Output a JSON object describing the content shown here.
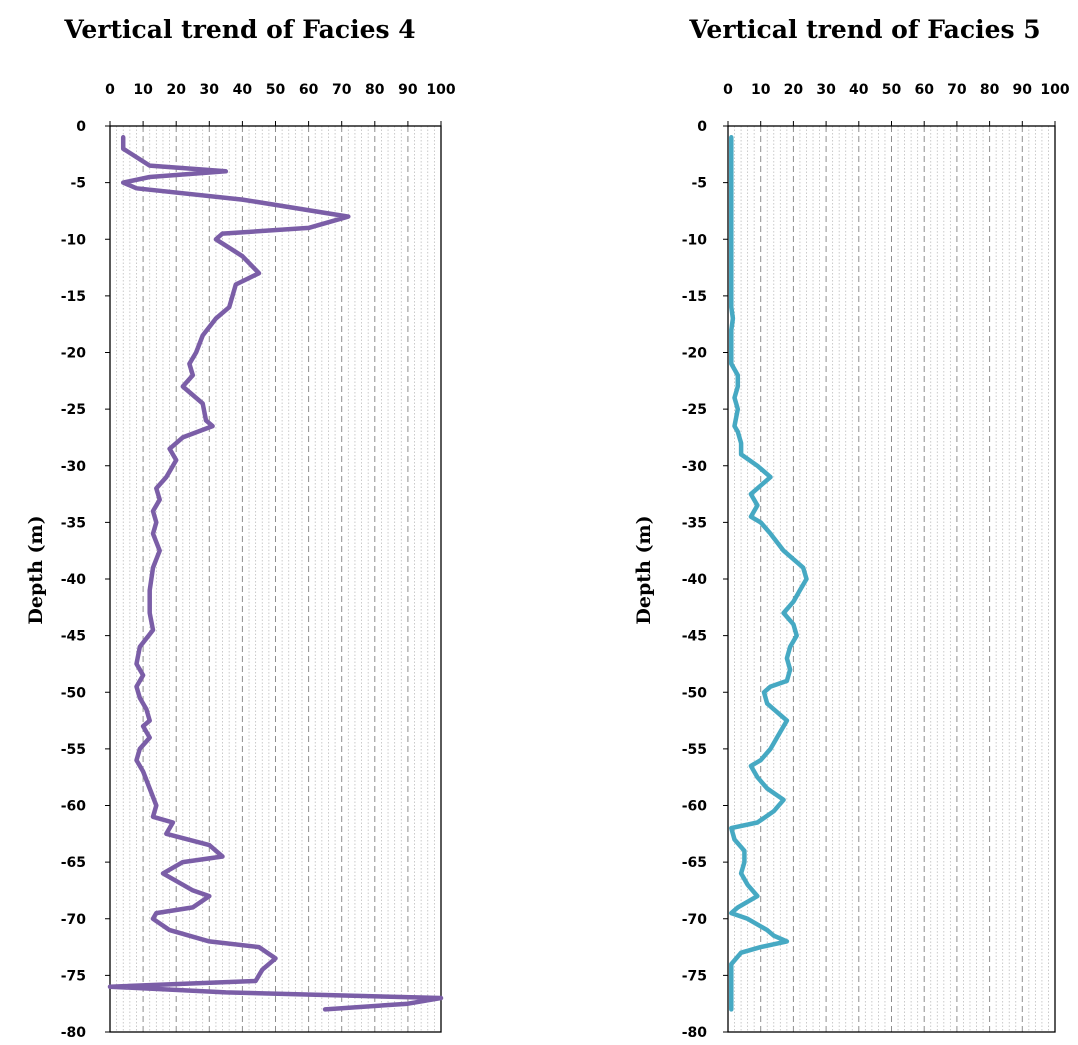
{
  "chart_data": [
    {
      "type": "line",
      "title": "Vertical trend of Facies 4",
      "xlabel": "",
      "ylabel": "Depth (m)",
      "xlim": [
        0,
        100
      ],
      "ylim": [
        -80,
        0
      ],
      "x_ticks": [
        "0",
        "10",
        "20",
        "30",
        "40",
        "50",
        "60",
        "70",
        "80",
        "90",
        "100"
      ],
      "y_ticks": [
        "0",
        "-5",
        "-10",
        "-15",
        "-20",
        "-25",
        "-30",
        "-35",
        "-40",
        "-45",
        "-50",
        "-55",
        "-60",
        "-65",
        "-70",
        "-75",
        "-80"
      ],
      "x_axis_position": "top",
      "grid": true,
      "color": "#7b5ea7",
      "series": [
        {
          "values": [
            {
              "x": 4,
              "y": -1
            },
            {
              "x": 4,
              "y": -2
            },
            {
              "x": 12,
              "y": -3.5
            },
            {
              "x": 35,
              "y": -4
            },
            {
              "x": 12,
              "y": -4.5
            },
            {
              "x": 4,
              "y": -5
            },
            {
              "x": 8,
              "y": -5.5
            },
            {
              "x": 40,
              "y": -6.5
            },
            {
              "x": 72,
              "y": -8
            },
            {
              "x": 60,
              "y": -9
            },
            {
              "x": 34,
              "y": -9.5
            },
            {
              "x": 32,
              "y": -10
            },
            {
              "x": 40,
              "y": -11.5
            },
            {
              "x": 45,
              "y": -13
            },
            {
              "x": 38,
              "y": -14
            },
            {
              "x": 36,
              "y": -16
            },
            {
              "x": 32,
              "y": -17
            },
            {
              "x": 28,
              "y": -18.5
            },
            {
              "x": 26,
              "y": -20
            },
            {
              "x": 24,
              "y": -21
            },
            {
              "x": 25,
              "y": -22
            },
            {
              "x": 22,
              "y": -23
            },
            {
              "x": 28,
              "y": -24.5
            },
            {
              "x": 29,
              "y": -26
            },
            {
              "x": 31,
              "y": -26.5
            },
            {
              "x": 22,
              "y": -27.5
            },
            {
              "x": 18,
              "y": -28.5
            },
            {
              "x": 20,
              "y": -29.5
            },
            {
              "x": 17,
              "y": -31
            },
            {
              "x": 14,
              "y": -32
            },
            {
              "x": 15,
              "y": -33
            },
            {
              "x": 13,
              "y": -34
            },
            {
              "x": 14,
              "y": -35
            },
            {
              "x": 13,
              "y": -36
            },
            {
              "x": 15,
              "y": -37.5
            },
            {
              "x": 13,
              "y": -39
            },
            {
              "x": 12,
              "y": -41
            },
            {
              "x": 12,
              "y": -43
            },
            {
              "x": 13,
              "y": -44.5
            },
            {
              "x": 9,
              "y": -46
            },
            {
              "x": 8,
              "y": -47.5
            },
            {
              "x": 10,
              "y": -48.5
            },
            {
              "x": 8,
              "y": -49.5
            },
            {
              "x": 9,
              "y": -50.5
            },
            {
              "x": 11,
              "y": -51.5
            },
            {
              "x": 12,
              "y": -52.5
            },
            {
              "x": 10,
              "y": -53
            },
            {
              "x": 12,
              "y": -54
            },
            {
              "x": 9,
              "y": -55
            },
            {
              "x": 8,
              "y": -56
            },
            {
              "x": 10,
              "y": -57
            },
            {
              "x": 12,
              "y": -58.5
            },
            {
              "x": 14,
              "y": -60
            },
            {
              "x": 13,
              "y": -61
            },
            {
              "x": 19,
              "y": -61.5
            },
            {
              "x": 17,
              "y": -62.5
            },
            {
              "x": 30,
              "y": -63.5
            },
            {
              "x": 34,
              "y": -64.5
            },
            {
              "x": 22,
              "y": -65
            },
            {
              "x": 16,
              "y": -66
            },
            {
              "x": 25,
              "y": -67.5
            },
            {
              "x": 30,
              "y": -68
            },
            {
              "x": 25,
              "y": -69
            },
            {
              "x": 14,
              "y": -69.5
            },
            {
              "x": 13,
              "y": -70
            },
            {
              "x": 18,
              "y": -71
            },
            {
              "x": 30,
              "y": -72
            },
            {
              "x": 45,
              "y": -72.5
            },
            {
              "x": 50,
              "y": -73.5
            },
            {
              "x": 46,
              "y": -74.5
            },
            {
              "x": 44,
              "y": -75.5
            },
            {
              "x": 0,
              "y": -76
            },
            {
              "x": 35,
              "y": -76.5
            },
            {
              "x": 100,
              "y": -77
            },
            {
              "x": 90,
              "y": -77.5
            },
            {
              "x": 65,
              "y": -78
            }
          ]
        }
      ]
    },
    {
      "type": "line",
      "title": "Vertical trend of Facies 5",
      "xlabel": "",
      "ylabel": "Depth (m)",
      "xlim": [
        0,
        100
      ],
      "ylim": [
        -80,
        0
      ],
      "x_ticks": [
        "0",
        "10",
        "20",
        "30",
        "40",
        "50",
        "60",
        "70",
        "80",
        "90",
        "100"
      ],
      "y_ticks": [
        "0",
        "-5",
        "-10",
        "-15",
        "-20",
        "-25",
        "-30",
        "-35",
        "-40",
        "-45",
        "-50",
        "-55",
        "-60",
        "-65",
        "-70",
        "-75",
        "-80"
      ],
      "x_axis_position": "top",
      "grid": true,
      "color": "#46a9c3",
      "series": [
        {
          "values": [
            {
              "x": 1,
              "y": -1
            },
            {
              "x": 1,
              "y": -16
            },
            {
              "x": 1.5,
              "y": -17
            },
            {
              "x": 1,
              "y": -18
            },
            {
              "x": 1,
              "y": -21
            },
            {
              "x": 3,
              "y": -22
            },
            {
              "x": 3,
              "y": -23
            },
            {
              "x": 2,
              "y": -24
            },
            {
              "x": 3,
              "y": -25
            },
            {
              "x": 2,
              "y": -26.5
            },
            {
              "x": 3,
              "y": -27
            },
            {
              "x": 4,
              "y": -28
            },
            {
              "x": 4,
              "y": -29
            },
            {
              "x": 9,
              "y": -30
            },
            {
              "x": 13,
              "y": -31
            },
            {
              "x": 9,
              "y": -32
            },
            {
              "x": 7,
              "y": -32.5
            },
            {
              "x": 9,
              "y": -33.5
            },
            {
              "x": 7,
              "y": -34.5
            },
            {
              "x": 10,
              "y": -35
            },
            {
              "x": 13,
              "y": -36
            },
            {
              "x": 17,
              "y": -37.5
            },
            {
              "x": 23,
              "y": -39
            },
            {
              "x": 24,
              "y": -40
            },
            {
              "x": 22,
              "y": -41
            },
            {
              "x": 20,
              "y": -42
            },
            {
              "x": 17,
              "y": -43
            },
            {
              "x": 20,
              "y": -44
            },
            {
              "x": 21,
              "y": -45
            },
            {
              "x": 19,
              "y": -46
            },
            {
              "x": 18,
              "y": -47
            },
            {
              "x": 19,
              "y": -48
            },
            {
              "x": 18,
              "y": -49
            },
            {
              "x": 13,
              "y": -49.5
            },
            {
              "x": 11,
              "y": -50
            },
            {
              "x": 12,
              "y": -51
            },
            {
              "x": 16,
              "y": -52
            },
            {
              "x": 18,
              "y": -52.5
            },
            {
              "x": 16,
              "y": -53.5
            },
            {
              "x": 13,
              "y": -55
            },
            {
              "x": 10,
              "y": -56
            },
            {
              "x": 7,
              "y": -56.5
            },
            {
              "x": 9,
              "y": -57.5
            },
            {
              "x": 12,
              "y": -58.5
            },
            {
              "x": 17,
              "y": -59.5
            },
            {
              "x": 14,
              "y": -60.5
            },
            {
              "x": 9,
              "y": -61.5
            },
            {
              "x": 1,
              "y": -62
            },
            {
              "x": 2,
              "y": -63
            },
            {
              "x": 5,
              "y": -64
            },
            {
              "x": 5,
              "y": -65
            },
            {
              "x": 4,
              "y": -66
            },
            {
              "x": 6,
              "y": -67
            },
            {
              "x": 9,
              "y": -68
            },
            {
              "x": 3,
              "y": -69
            },
            {
              "x": 1,
              "y": -69.5
            },
            {
              "x": 6,
              "y": -70
            },
            {
              "x": 12,
              "y": -71
            },
            {
              "x": 14,
              "y": -71.5
            },
            {
              "x": 18,
              "y": -72
            },
            {
              "x": 10,
              "y": -72.5
            },
            {
              "x": 4,
              "y": -73
            },
            {
              "x": 1,
              "y": -74
            },
            {
              "x": 1,
              "y": -78
            }
          ]
        }
      ]
    }
  ]
}
